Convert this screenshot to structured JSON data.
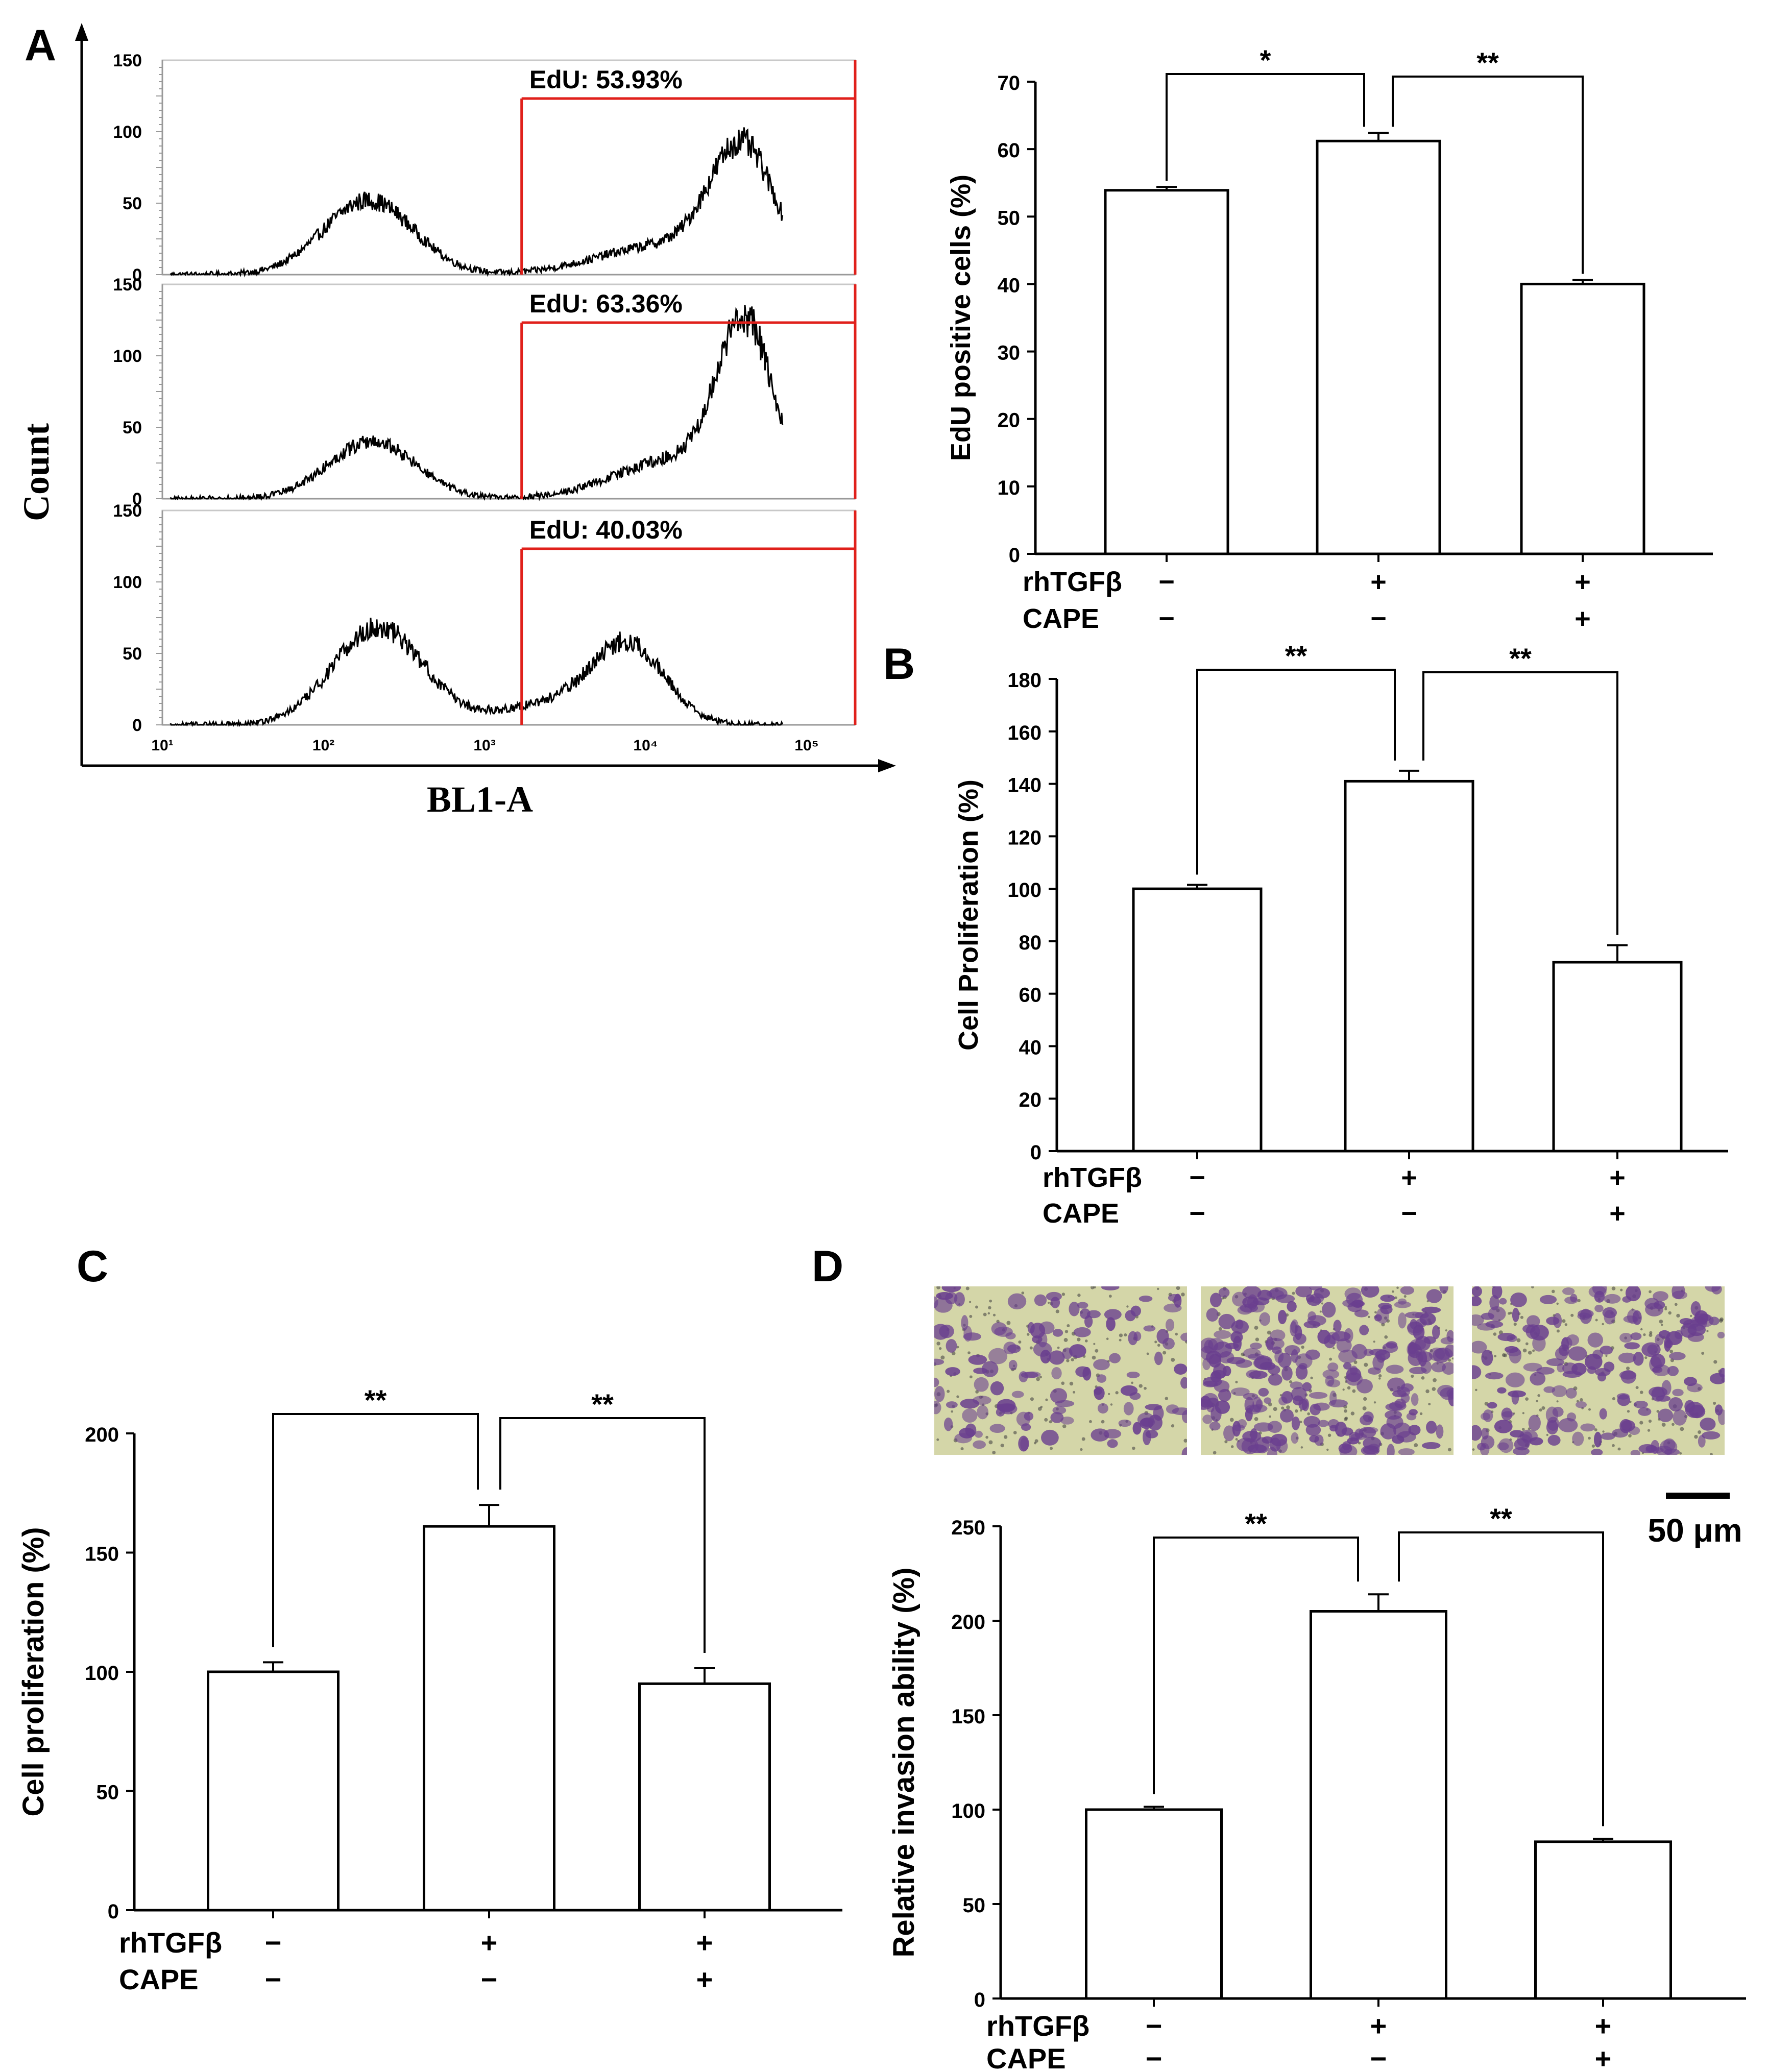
{
  "panel_labels": {
    "a": "A",
    "b": "B",
    "c": "C",
    "d": "D"
  },
  "colors": {
    "gate": "#e0201b",
    "axis": "#000000",
    "bar_fill": "#ffffff",
    "micro_bg": "#d4d6a8",
    "micro_cell": "#6a3f8f"
  },
  "icons": {
    "scale_bar": "scale-bar-icon",
    "micrograph": "micrograph-image"
  },
  "treatments": {
    "row1_label": "rhTGFβ",
    "row2_label": "CAPE",
    "row1_signs": [
      "−",
      "+",
      "+"
    ],
    "row2_signs": [
      "−",
      "−",
      "+"
    ]
  },
  "chart_data": [
    {
      "id": "flow_histograms",
      "type": "area",
      "xlabel": "BL1-A",
      "ylabel": "Count",
      "x_scale": "log",
      "xlim": [
        10,
        200000
      ],
      "ylim": [
        0,
        150
      ],
      "y_ticks": [
        "0",
        "50",
        "100",
        "150"
      ],
      "x_ticks": [
        "10¹",
        "10²",
        "10³",
        "10⁴",
        "10⁵"
      ],
      "gate_start": 1700,
      "series": [
        {
          "name": "rhTGFβ − / CAPE −",
          "gate_label": "EdU: 53.93%",
          "peaks": [
            {
              "center": 2.28,
              "height": 52,
              "width": 0.28
            },
            {
              "center": 4.6,
              "height": 84,
              "width": 0.2
            },
            {
              "center": 4.1,
              "height": 20,
              "width": 0.4
            }
          ]
        },
        {
          "name": "rhTGFβ + / CAPE −",
          "gate_label": "EdU: 63.36%",
          "peaks": [
            {
              "center": 2.3,
              "height": 40,
              "width": 0.27
            },
            {
              "center": 4.62,
              "height": 112,
              "width": 0.17
            },
            {
              "center": 4.2,
              "height": 28,
              "width": 0.38
            }
          ]
        },
        {
          "name": "rhTGFβ + / CAPE +",
          "gate_label": "EdU: 40.03%",
          "peaks": [
            {
              "center": 2.34,
              "height": 68,
              "width": 0.28
            },
            {
              "center": 3.9,
              "height": 52,
              "width": 0.22
            },
            {
              "center": 3.45,
              "height": 15,
              "width": 0.35
            }
          ]
        }
      ]
    },
    {
      "id": "edu_positive",
      "type": "bar",
      "ylabel": "EdU positive cells (%)",
      "ylim": [
        0,
        70
      ],
      "y_ticks": [
        0,
        10,
        20,
        30,
        40,
        50,
        60,
        70
      ],
      "values": [
        53.9,
        61.2,
        40.0
      ],
      "errors": [
        0.5,
        1.2,
        0.6
      ],
      "significance": [
        "*",
        "**"
      ]
    },
    {
      "id": "cell_proliferation_b",
      "type": "bar",
      "ylabel": "Cell Proliferation (%)",
      "ylim": [
        0,
        180
      ],
      "y_ticks": [
        0,
        20,
        40,
        60,
        80,
        100,
        120,
        140,
        160,
        180
      ],
      "values": [
        100,
        141,
        72
      ],
      "errors": [
        1.5,
        4,
        6.5
      ],
      "significance": [
        "**",
        "**"
      ]
    },
    {
      "id": "cell_proliferation_c",
      "type": "bar",
      "ylabel": "Cell proliferation (%)",
      "ylim": [
        0,
        200
      ],
      "y_ticks": [
        0,
        50,
        100,
        150,
        200
      ],
      "values": [
        100,
        161,
        95
      ],
      "errors": [
        4,
        9,
        6.5
      ],
      "significance": [
        "**",
        "**"
      ]
    },
    {
      "id": "relative_invasion",
      "type": "bar",
      "ylabel": "Relative invasion ability (%)",
      "ylim": [
        0,
        250
      ],
      "y_ticks": [
        0,
        50,
        100,
        150,
        200,
        250
      ],
      "values": [
        100,
        205,
        83
      ],
      "errors": [
        1.5,
        9,
        1.5
      ],
      "significance": [
        "**",
        "**"
      ],
      "scale_bar_label": "50 μm"
    }
  ]
}
